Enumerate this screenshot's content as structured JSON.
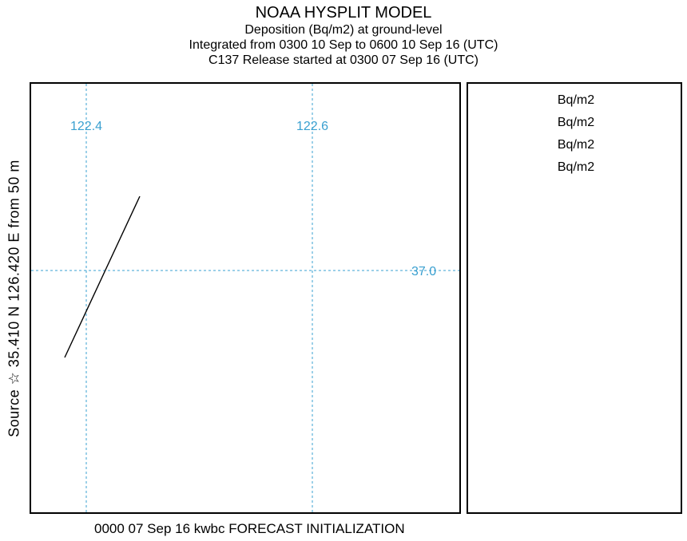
{
  "title": {
    "main": "NOAA HYSPLIT MODEL",
    "line2": "Deposition  (Bq/m2) at ground-level",
    "line3": "Integrated from 0300 10 Sep to 0600 10 Sep 16 (UTC)",
    "line4": "C137 Release started at 0300 07 Sep 16 (UTC)"
  },
  "side_label": "Source ☆ 35.410  N 126.420  E   from   50 m",
  "footer": "0000 07 Sep 16 kwbc FORECAST INITIALIZATION",
  "map": {
    "longitude_labels": [
      "122.4",
      "122.6"
    ],
    "latitude_labels": [
      "37.0"
    ],
    "grid_color": "#3aa0d0",
    "coastline_color": "#000000"
  },
  "legend": {
    "items": [
      "Bq/m2",
      "Bq/m2",
      "Bq/m2",
      "Bq/m2"
    ]
  }
}
